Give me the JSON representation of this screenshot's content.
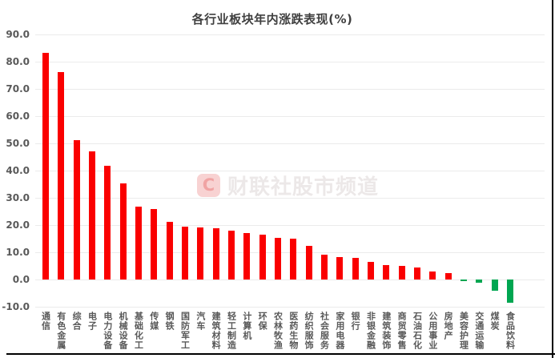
{
  "chart_data": {
    "type": "bar",
    "title": "各行业板块年内涨跌表现(%)",
    "xlabel": "",
    "ylabel": "",
    "ylim": [
      -10,
      90
    ],
    "grid": "horizontal",
    "legend": "none",
    "positive_color": "#fa0000",
    "negative_color": "#00a651",
    "categories": [
      "通信",
      "有色金属",
      "综合",
      "电子",
      "电力设备",
      "机械设备",
      "基础化工",
      "传媒",
      "钢铁",
      "国防军工",
      "汽车",
      "建筑材料",
      "轻工制造",
      "计算机",
      "环保",
      "农林牧渔",
      "医药生物",
      "纺织服饰",
      "社会服务",
      "家用电器",
      "银行",
      "非银金融",
      "建筑装饰",
      "商贸零售",
      "石油石化",
      "公用事业",
      "房地产",
      "美容护理",
      "交通运输",
      "煤炭",
      "食品饮料"
    ],
    "values": [
      83.2,
      76.3,
      51.2,
      47.0,
      41.7,
      35.3,
      26.7,
      25.8,
      21.2,
      19.3,
      19.0,
      18.8,
      18.0,
      17.0,
      16.4,
      15.2,
      15.0,
      12.5,
      9.0,
      8.2,
      7.9,
      6.6,
      5.4,
      5.0,
      4.3,
      2.9,
      2.3,
      -0.6,
      -1.3,
      -4.2,
      -8.4
    ],
    "yticks": [
      {
        "label": "90.0",
        "value": 90
      },
      {
        "label": "80.0",
        "value": 80
      },
      {
        "label": "70.0",
        "value": 70
      },
      {
        "label": "60.0",
        "value": 60
      },
      {
        "label": "50.0",
        "value": 50
      },
      {
        "label": "40.0",
        "value": 40
      },
      {
        "label": "30.0",
        "value": 30
      },
      {
        "label": "20.0",
        "value": 20
      },
      {
        "label": "10.0",
        "value": 10
      },
      {
        "label": "0.0",
        "value": 0
      },
      {
        "label": "-10.0",
        "value": -10
      }
    ]
  },
  "watermark": {
    "logo_letter": "C",
    "text": "财联社股市频道"
  },
  "colors": {
    "gridline": "#ebebeb",
    "axis_label": "#595959",
    "title": "#404040",
    "frame_border": "#000000"
  }
}
